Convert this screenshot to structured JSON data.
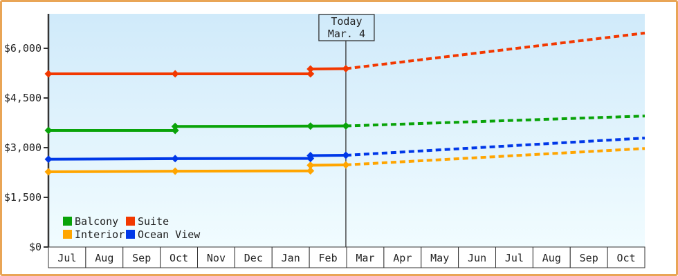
{
  "frame": {
    "border_color": "#e9a556",
    "background": "#ffffff"
  },
  "chart_data": {
    "type": "line",
    "title": "",
    "xlabel": "",
    "ylabel": "",
    "x_categories": [
      "Jul",
      "Aug",
      "Sep",
      "Oct",
      "Nov",
      "Dec",
      "Jan",
      "Feb",
      "Mar",
      "Apr",
      "May",
      "Jun",
      "Jul",
      "Aug",
      "Sep",
      "Oct"
    ],
    "x_months_range": [
      0,
      16
    ],
    "ylim": [
      0,
      7040
    ],
    "grid": false,
    "plot_bg_gradient": [
      "#d0eafa",
      "#f1fcff"
    ],
    "axis_color": "#333333",
    "text_color": "#222222",
    "y_ticks": [
      {
        "value": 0,
        "label": "$0"
      },
      {
        "value": 1500,
        "label": "$1,500"
      },
      {
        "value": 3000,
        "label": "$3,000"
      },
      {
        "value": 4500,
        "label": "$4,500"
      },
      {
        "value": 6000,
        "label": "$6,000"
      }
    ],
    "today": {
      "title": "Today",
      "date": "Mar. 4",
      "month_x": 7.98
    },
    "series": [
      {
        "name": "Balcony",
        "color": "#09a309",
        "solid_points": [
          [
            0,
            3520
          ],
          [
            3.4,
            3520
          ],
          [
            3.4,
            3640
          ],
          [
            7.03,
            3650
          ],
          [
            7.98,
            3655
          ]
        ],
        "marker_points": [
          [
            0,
            3520
          ],
          [
            3.4,
            3520
          ],
          [
            3.4,
            3640
          ],
          [
            7.03,
            3650
          ],
          [
            7.98,
            3655
          ]
        ],
        "dashed_points": [
          [
            7.98,
            3655
          ],
          [
            16,
            3955
          ]
        ]
      },
      {
        "name": "Suite",
        "color": "#f23800",
        "solid_points": [
          [
            0,
            5230
          ],
          [
            3.4,
            5230
          ],
          [
            7.03,
            5230
          ],
          [
            7.03,
            5375
          ],
          [
            7.98,
            5385
          ]
        ],
        "marker_points": [
          [
            0,
            5230
          ],
          [
            3.4,
            5230
          ],
          [
            7.03,
            5230
          ],
          [
            7.03,
            5375
          ],
          [
            7.98,
            5385
          ]
        ],
        "dashed_points": [
          [
            7.98,
            5385
          ],
          [
            16,
            6460
          ]
        ]
      },
      {
        "name": "Interior",
        "color": "#ffa500",
        "solid_points": [
          [
            0,
            2270
          ],
          [
            3.4,
            2290
          ],
          [
            7.03,
            2300
          ],
          [
            7.03,
            2470
          ],
          [
            7.98,
            2480
          ]
        ],
        "marker_points": [
          [
            0,
            2270
          ],
          [
            3.4,
            2290
          ],
          [
            7.03,
            2300
          ],
          [
            7.03,
            2470
          ],
          [
            7.98,
            2480
          ]
        ],
        "dashed_points": [
          [
            7.98,
            2480
          ],
          [
            16,
            2975
          ]
        ]
      },
      {
        "name": "Ocean View",
        "color": "#0038e8",
        "solid_points": [
          [
            0,
            2650
          ],
          [
            3.4,
            2670
          ],
          [
            7.03,
            2675
          ],
          [
            7.03,
            2760
          ],
          [
            7.98,
            2770
          ]
        ],
        "marker_points": [
          [
            0,
            2650
          ],
          [
            3.4,
            2670
          ],
          [
            7.03,
            2675
          ],
          [
            7.03,
            2760
          ],
          [
            7.98,
            2770
          ]
        ],
        "dashed_points": [
          [
            7.98,
            2770
          ],
          [
            16,
            3290
          ]
        ]
      }
    ],
    "legend": {
      "position": "bottom-left",
      "rows": [
        [
          {
            "label": "Balcony",
            "color": "#09a309"
          },
          {
            "label": "Suite",
            "color": "#f23800"
          }
        ],
        [
          {
            "label": "Interior",
            "color": "#ffa500"
          },
          {
            "label": "Ocean View",
            "color": "#0038e8"
          }
        ]
      ]
    }
  }
}
